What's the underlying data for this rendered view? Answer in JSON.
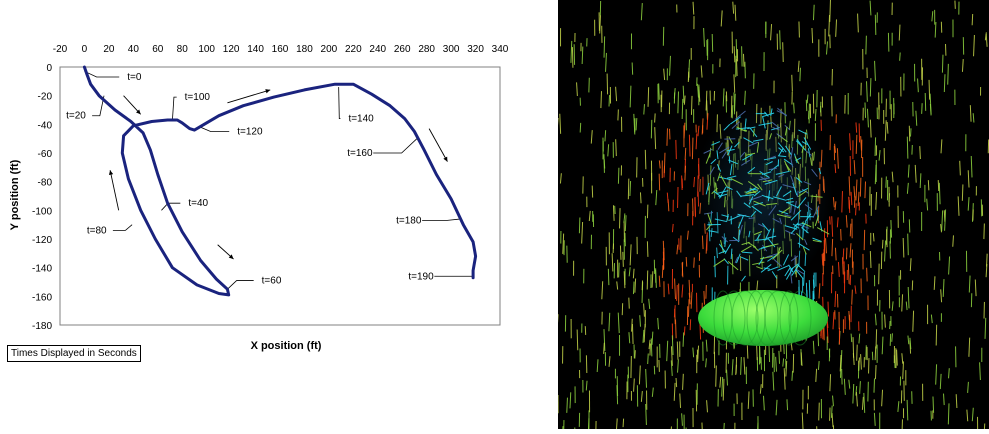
{
  "chart_data": {
    "type": "line",
    "xlabel": "X position (ft)",
    "ylabel": "Y position (ft)",
    "xlim": [
      -20,
      340
    ],
    "ylim": [
      -180,
      0
    ],
    "x_ticks": [
      -20,
      0,
      20,
      40,
      60,
      80,
      100,
      120,
      140,
      160,
      180,
      200,
      220,
      240,
      260,
      280,
      300,
      320,
      340
    ],
    "y_ticks": [
      0,
      -20,
      -40,
      -60,
      -80,
      -100,
      -120,
      -140,
      -160,
      -180
    ],
    "x_axis_position": "top",
    "grid": false,
    "series": [
      {
        "color": "#1a237e",
        "points": [
          [
            0,
            0
          ],
          [
            2,
            -5
          ],
          [
            5,
            -12
          ],
          [
            12,
            -20
          ],
          [
            25,
            -30
          ],
          [
            38,
            -38
          ],
          [
            48,
            -46
          ],
          [
            54,
            -58
          ],
          [
            60,
            -75
          ],
          [
            68,
            -95
          ],
          [
            80,
            -115
          ],
          [
            95,
            -135
          ],
          [
            108,
            -148
          ],
          [
            117,
            -155
          ],
          [
            118,
            -159
          ],
          [
            110,
            -158
          ],
          [
            92,
            -152
          ],
          [
            72,
            -140
          ],
          [
            58,
            -120
          ],
          [
            46,
            -100
          ],
          [
            36,
            -78
          ],
          [
            31,
            -60
          ],
          [
            32,
            -48
          ],
          [
            40,
            -41
          ],
          [
            55,
            -38
          ],
          [
            68,
            -37
          ],
          [
            76,
            -37
          ],
          [
            80,
            -39
          ],
          [
            86,
            -43
          ],
          [
            90,
            -44
          ],
          [
            98,
            -40
          ],
          [
            110,
            -34
          ],
          [
            130,
            -27
          ],
          [
            155,
            -21
          ],
          [
            180,
            -16
          ],
          [
            205,
            -12
          ],
          [
            220,
            -12
          ],
          [
            235,
            -19
          ],
          [
            250,
            -27
          ],
          [
            262,
            -36
          ],
          [
            270,
            -45
          ],
          [
            278,
            -58
          ],
          [
            288,
            -75
          ],
          [
            300,
            -92
          ],
          [
            310,
            -110
          ],
          [
            318,
            -122
          ],
          [
            320,
            -132
          ],
          [
            318,
            -142
          ],
          [
            318,
            -147
          ]
        ]
      }
    ],
    "time_labels": [
      {
        "text": "t=0",
        "at": [
          0,
          -3
        ],
        "label_at": [
          35,
          -7
        ]
      },
      {
        "text": "t=20",
        "at": [
          16,
          -20
        ],
        "label_at": [
          -15,
          -34
        ]
      },
      {
        "text": "t=40",
        "at": [
          63,
          -100
        ],
        "label_at": [
          85,
          -95
        ]
      },
      {
        "text": "t=60",
        "at": [
          117,
          -155
        ],
        "label_at": [
          145,
          -149
        ]
      },
      {
        "text": "t=80",
        "at": [
          39,
          -110
        ],
        "label_at": [
          2,
          -114
        ]
      },
      {
        "text": "t=100",
        "at": [
          72,
          -37
        ],
        "label_at": [
          82,
          -21
        ]
      },
      {
        "text": "t=120",
        "at": [
          95,
          -42
        ],
        "label_at": [
          125,
          -45
        ]
      },
      {
        "text": "t=140",
        "at": [
          208,
          -14
        ],
        "label_at": [
          216,
          -36
        ]
      },
      {
        "text": "t=160",
        "at": [
          272,
          -50
        ],
        "label_at": [
          215,
          -60
        ]
      },
      {
        "text": "t=180",
        "at": [
          308,
          -106
        ],
        "label_at": [
          255,
          -107
        ]
      },
      {
        "text": "t=190",
        "at": [
          318,
          -146
        ],
        "label_at": [
          265,
          -146
        ]
      }
    ],
    "direction_arrows": [
      {
        "from": [
          32,
          -20
        ],
        "to": [
          46,
          -33
        ]
      },
      {
        "from": [
          109,
          -124
        ],
        "to": [
          122,
          -134
        ]
      },
      {
        "from": [
          28,
          -100
        ],
        "to": [
          21,
          -72
        ]
      },
      {
        "from": [
          117,
          -25
        ],
        "to": [
          152,
          -16
        ]
      },
      {
        "from": [
          282,
          -43
        ],
        "to": [
          297,
          -66
        ]
      }
    ],
    "annotation": "Times Displayed in Seconds"
  },
  "flow_image": {
    "description_icon": "flow-visualization-image",
    "colors": {
      "background": "#000000",
      "streak_light": "#c8d84a",
      "streak_mid": "#8fd640",
      "warm": "#ff6a1a",
      "hot": "#ff3a10",
      "cool": "#2ad8f0",
      "dark_vortex": "#0a2030",
      "body": "#3cdc3c",
      "body_highlight": "#9cff6a"
    }
  }
}
